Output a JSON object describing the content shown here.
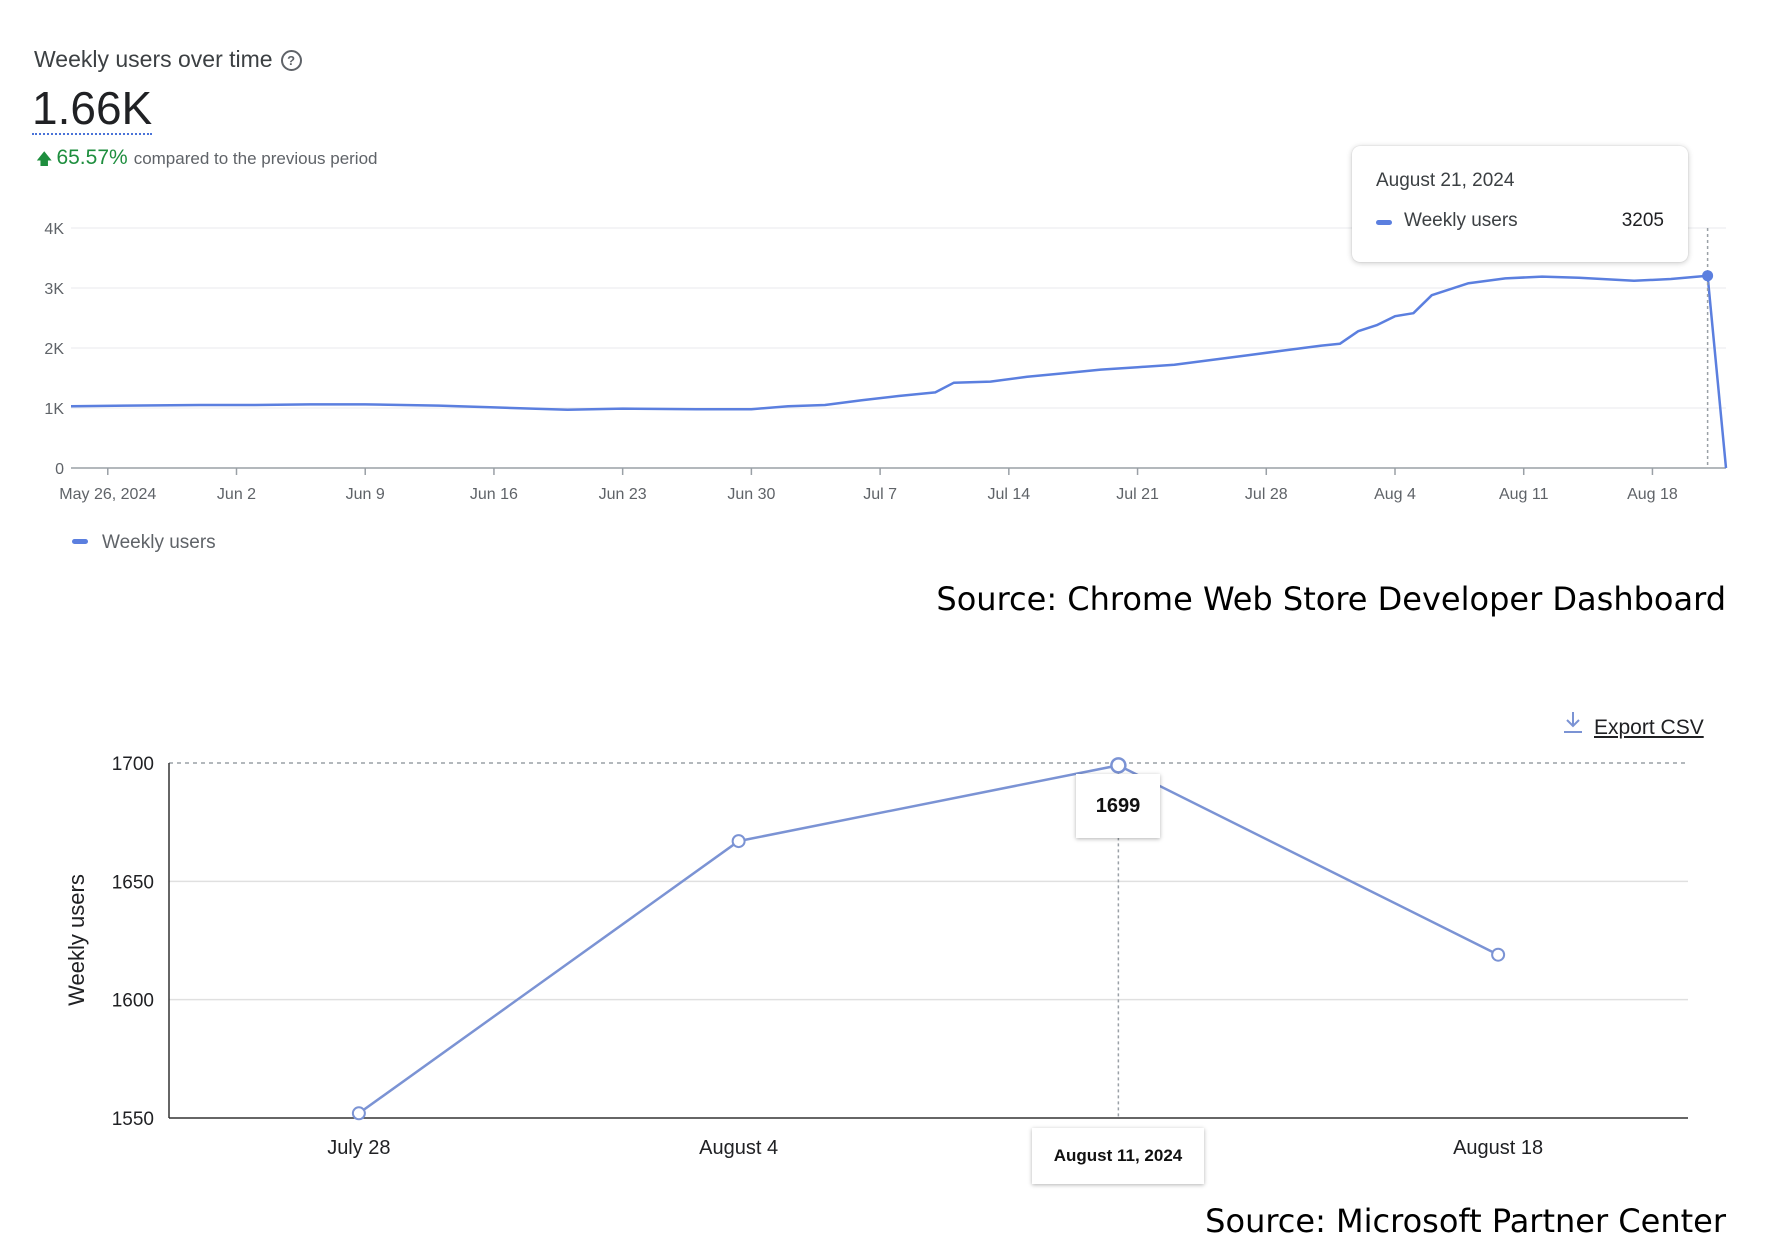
{
  "dashboard": {
    "title": "Weekly users over time",
    "help_icon": "help-circle-icon",
    "big_value": "1.66K",
    "change_percent": "65.57%",
    "change_text": "compared to the previous period",
    "change_direction_icon": "arrow-up-icon",
    "legend_label": "Weekly users",
    "source": "Source: Chrome Web Store Developer Dashboard",
    "tooltip": {
      "date": "August 21, 2024",
      "series": "Weekly users",
      "value": "3205"
    }
  },
  "partner_center": {
    "export_label": "Export CSV",
    "export_icon": "download-icon",
    "source": "Source: Microsoft Partner Center",
    "tooltip_value": "1699",
    "tooltip_date": "August 11, 2024"
  },
  "colors": {
    "line": "#5b7fdf",
    "line2": "#7b93d4",
    "positive": "#1e8e3e"
  },
  "chart_data": [
    {
      "type": "line",
      "title": "Weekly users over time",
      "xlabel": "",
      "ylabel": "",
      "ylim": [
        0,
        4000
      ],
      "y_ticks": [
        "0",
        "1K",
        "2K",
        "3K",
        "4K"
      ],
      "y_tick_values": [
        0,
        1000,
        2000,
        3000,
        4000
      ],
      "x_ticks": [
        "May 26, 2024",
        "Jun 2",
        "Jun 9",
        "Jun 16",
        "Jun 23",
        "Jun 30",
        "Jul 7",
        "Jul 14",
        "Jul 21",
        "Jul 28",
        "Aug 4",
        "Aug 11",
        "Aug 18"
      ],
      "x_tick_dates": [
        "2024-05-26",
        "2024-06-02",
        "2024-06-09",
        "2024-06-16",
        "2024-06-23",
        "2024-06-30",
        "2024-07-07",
        "2024-07-14",
        "2024-07-21",
        "2024-07-28",
        "2024-08-04",
        "2024-08-11",
        "2024-08-18"
      ],
      "x_range": [
        "2024-05-24",
        "2024-08-22"
      ],
      "grid": true,
      "legend": "bottom-left",
      "series": [
        {
          "name": "Weekly users",
          "x": [
            "2024-05-24",
            "2024-05-27",
            "2024-05-31",
            "2024-06-03",
            "2024-06-06",
            "2024-06-09",
            "2024-06-13",
            "2024-06-16",
            "2024-06-20",
            "2024-06-23",
            "2024-06-27",
            "2024-06-30",
            "2024-07-02",
            "2024-07-04",
            "2024-07-06",
            "2024-07-08",
            "2024-07-10",
            "2024-07-11",
            "2024-07-13",
            "2024-07-15",
            "2024-07-17",
            "2024-07-19",
            "2024-07-21",
            "2024-07-23",
            "2024-07-25",
            "2024-07-27",
            "2024-07-29",
            "2024-07-31",
            "2024-08-01",
            "2024-08-02",
            "2024-08-03",
            "2024-08-04",
            "2024-08-05",
            "2024-08-06",
            "2024-08-08",
            "2024-08-10",
            "2024-08-12",
            "2024-08-14",
            "2024-08-17",
            "2024-08-19",
            "2024-08-21",
            "2024-08-22"
          ],
          "values": [
            1030,
            1040,
            1050,
            1050,
            1060,
            1060,
            1040,
            1010,
            970,
            990,
            980,
            980,
            1030,
            1050,
            1130,
            1200,
            1260,
            1420,
            1440,
            1520,
            1580,
            1640,
            1680,
            1720,
            1800,
            1880,
            1960,
            2040,
            2070,
            2280,
            2380,
            2530,
            2580,
            2880,
            3080,
            3160,
            3190,
            3170,
            3120,
            3150,
            3205,
            0
          ]
        }
      ],
      "tooltip": {
        "date": "August 21, 2024",
        "series": "Weekly users",
        "value": 3205
      }
    },
    {
      "type": "line",
      "title": "",
      "xlabel": "",
      "ylabel": "Weekly users",
      "ylim": [
        1550,
        1700
      ],
      "y_ticks": [
        1550,
        1600,
        1650,
        1700
      ],
      "categories": [
        "July 28",
        "August 4",
        "August 11",
        "August 18"
      ],
      "grid": true,
      "legend": "none",
      "series": [
        {
          "name": "Weekly users",
          "values": [
            1552,
            1667,
            1699,
            1619
          ]
        }
      ],
      "tooltip": {
        "category": "August 11, 2024",
        "value": 1699
      }
    }
  ]
}
